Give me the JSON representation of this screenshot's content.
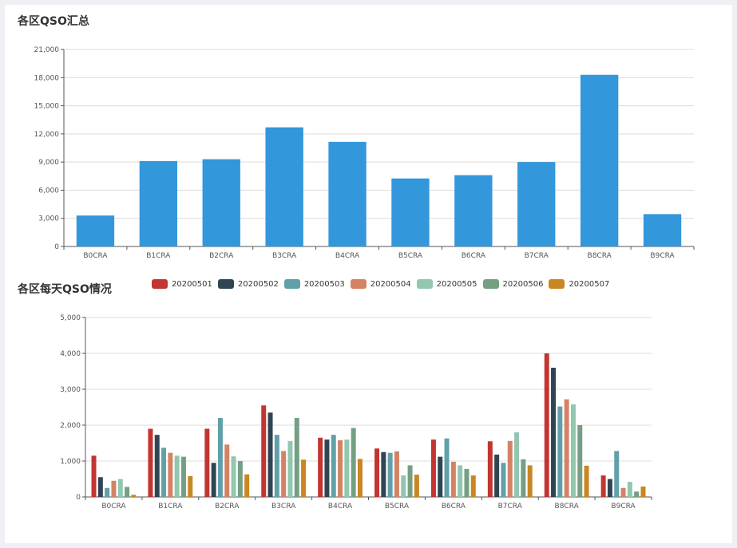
{
  "chart_data": [
    {
      "type": "bar",
      "title": "各区QSO汇总",
      "categories": [
        "B0CRA",
        "B1CRA",
        "B2CRA",
        "B3CRA",
        "B4CRA",
        "B5CRA",
        "B6CRA",
        "B7CRA",
        "B8CRA",
        "B9CRA"
      ],
      "values": [
        3300,
        9100,
        9300,
        12700,
        11150,
        7250,
        7600,
        9000,
        18300,
        3450
      ],
      "ylim": [
        0,
        21000
      ],
      "yticks": [
        "0",
        "3,000",
        "6,000",
        "9,000",
        "12,000",
        "15,000",
        "18,000",
        "21,000"
      ],
      "grid": true,
      "colors": {
        "bar": "#3397dc"
      }
    },
    {
      "type": "bar",
      "title": "各区每天QSO情况",
      "categories": [
        "B0CRA",
        "B1CRA",
        "B2CRA",
        "B3CRA",
        "B4CRA",
        "B5CRA",
        "B6CRA",
        "B7CRA",
        "B8CRA",
        "B9CRA"
      ],
      "series": [
        {
          "name": "20200501",
          "color": "#c23531",
          "values": [
            1150,
            1900,
            1900,
            2550,
            1650,
            1350,
            1600,
            1550,
            4000,
            600
          ]
        },
        {
          "name": "20200502",
          "color": "#2f4554",
          "values": [
            550,
            1730,
            950,
            2350,
            1600,
            1250,
            1120,
            1180,
            3600,
            500
          ]
        },
        {
          "name": "20200503",
          "color": "#61a0a8",
          "values": [
            250,
            1370,
            2200,
            1730,
            1730,
            1230,
            1630,
            950,
            2520,
            1280
          ]
        },
        {
          "name": "20200504",
          "color": "#d48265",
          "values": [
            450,
            1230,
            1460,
            1280,
            1580,
            1270,
            980,
            1560,
            2720,
            250
          ]
        },
        {
          "name": "20200505",
          "color": "#91c7ae",
          "values": [
            500,
            1150,
            1130,
            1560,
            1600,
            600,
            880,
            1800,
            2580,
            420
          ]
        },
        {
          "name": "20200506",
          "color": "#749f83",
          "values": [
            280,
            1120,
            1000,
            2200,
            1920,
            880,
            780,
            1050,
            2000,
            150
          ]
        },
        {
          "name": "20200507",
          "color": "#ca8622",
          "values": [
            60,
            580,
            630,
            1040,
            1060,
            620,
            600,
            880,
            870,
            290
          ]
        }
      ],
      "ylim": [
        0,
        5000
      ],
      "yticks": [
        "0",
        "1,000",
        "2,000",
        "3,000",
        "4,000",
        "5,000"
      ],
      "grid": true,
      "legend_position": "top"
    }
  ]
}
